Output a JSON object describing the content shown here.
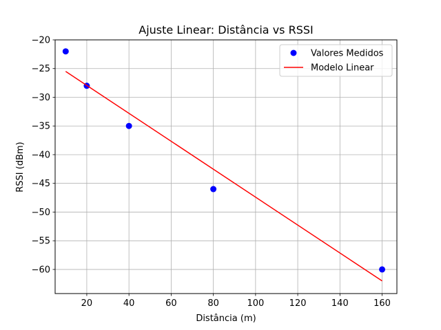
{
  "chart_data": {
    "type": "scatter",
    "title": "Ajuste Linear: Distância vs RSSI",
    "xlabel": "Distância (m)",
    "ylabel": "RSSI (dBm)",
    "xlim": [
      5,
      167
    ],
    "ylim": [
      -64.2,
      -20
    ],
    "xticks": [
      20,
      40,
      60,
      80,
      100,
      120,
      140,
      160
    ],
    "yticks": [
      -20,
      -25,
      -30,
      -35,
      -40,
      -45,
      -50,
      -55,
      -60
    ],
    "grid": true,
    "legend_position": "top-right",
    "series": [
      {
        "name": "Valores Medidos",
        "type": "scatter",
        "color": "#0000ff",
        "x": [
          10,
          20,
          40,
          80,
          160
        ],
        "y": [
          -22,
          -28,
          -35,
          -46,
          -60
        ]
      },
      {
        "name": "Modelo Linear",
        "type": "line",
        "color": "#ff0000",
        "x": [
          10,
          160
        ],
        "y": [
          -25.5,
          -62
        ]
      }
    ]
  }
}
